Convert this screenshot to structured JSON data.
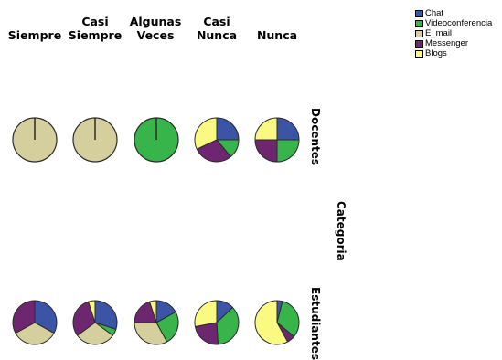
{
  "chart_data": {
    "type": "pie",
    "columns": [
      "Siempre",
      "Casi Siempre",
      "Algunas Veces",
      "Casi Nunca",
      "Nunca"
    ],
    "column_labels": [
      [
        "Siempre"
      ],
      [
        "Casi",
        "Siempre"
      ],
      [
        "Algunas",
        "Veces"
      ],
      [
        "Casi",
        "Nunca"
      ],
      [
        "Nunca"
      ]
    ],
    "rows": [
      "Docentes",
      "Estudiantes"
    ],
    "row_axis_title": "Categoria",
    "series_names": [
      "Chat",
      "Videoconferencia",
      "E_mail",
      "Messenger",
      "Blogs"
    ],
    "colors": {
      "Chat": "#3c54a6",
      "Videoconferencia": "#37b44a",
      "E_mail": "#d4cf9c",
      "Messenger": "#6e2670",
      "Blogs": "#fafa82"
    },
    "legend_position": "top-right",
    "panels": [
      {
        "row": "Docentes",
        "column": "Siempre",
        "values": {
          "Chat": 0,
          "Videoconferencia": 0,
          "E_mail": 100,
          "Messenger": 0,
          "Blogs": 0
        }
      },
      {
        "row": "Docentes",
        "column": "Casi Siempre",
        "values": {
          "Chat": 0,
          "Videoconferencia": 0,
          "E_mail": 100,
          "Messenger": 0,
          "Blogs": 0
        }
      },
      {
        "row": "Docentes",
        "column": "Algunas Veces",
        "values": {
          "Chat": 0,
          "Videoconferencia": 100,
          "E_mail": 0,
          "Messenger": 0,
          "Blogs": 0
        }
      },
      {
        "row": "Docentes",
        "column": "Casi Nunca",
        "values": {
          "Chat": 25,
          "Videoconferencia": 14,
          "E_mail": 0,
          "Messenger": 29,
          "Blogs": 32
        }
      },
      {
        "row": "Docentes",
        "column": "Nunca",
        "values": {
          "Chat": 25,
          "Videoconferencia": 25,
          "E_mail": 0,
          "Messenger": 25,
          "Blogs": 25
        }
      },
      {
        "row": "Estudiantes",
        "column": "Siempre",
        "values": {
          "Chat": 33,
          "Videoconferencia": 0,
          "E_mail": 34,
          "Messenger": 33,
          "Blogs": 0
        }
      },
      {
        "row": "Estudiantes",
        "column": "Casi Siempre",
        "values": {
          "Chat": 30,
          "Videoconferencia": 5,
          "E_mail": 30,
          "Messenger": 30,
          "Blogs": 5
        }
      },
      {
        "row": "Estudiantes",
        "column": "Algunas Veces",
        "values": {
          "Chat": 17,
          "Videoconferencia": 25,
          "E_mail": 33,
          "Messenger": 20,
          "Blogs": 5
        }
      },
      {
        "row": "Estudiantes",
        "column": "Casi Nunca",
        "values": {
          "Chat": 13,
          "Videoconferencia": 36,
          "E_mail": 0,
          "Messenger": 23,
          "Blogs": 28
        }
      },
      {
        "row": "Estudiantes",
        "column": "Nunca",
        "values": {
          "Chat": 4,
          "Videoconferencia": 32,
          "E_mail": 0,
          "Messenger": 6,
          "Blogs": 58
        }
      }
    ]
  }
}
